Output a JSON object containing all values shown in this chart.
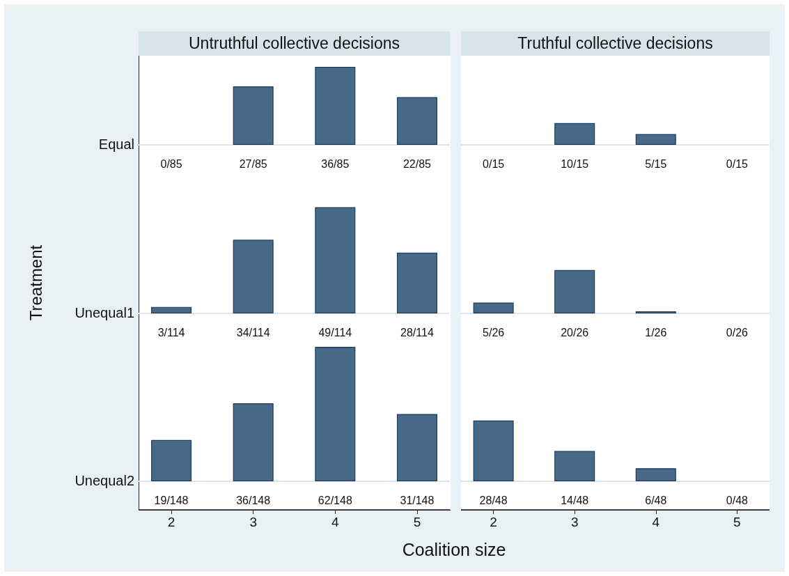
{
  "chart_data": [
    {
      "type": "bar",
      "title": "Untruthful collective decisions",
      "annotations": [
        "Equal"
      ],
      "x": [
        2,
        3,
        4,
        5
      ],
      "xlim": [
        1.6,
        5.4
      ],
      "values": [
        0,
        27,
        36,
        22
      ],
      "value_labels": [
        "0/85",
        "27/85",
        "36/85",
        "22/85"
      ],
      "color": "#476a8b",
      "tick_labels": false
    },
    {
      "type": "bar",
      "title": "Truthful collective decisions",
      "x": [
        2,
        3,
        4,
        5
      ],
      "xlim": [
        1.6,
        5.4
      ],
      "values": [
        0,
        10,
        5,
        0
      ],
      "value_labels": [
        "0/15",
        "10/15",
        "5/15",
        "0/15"
      ],
      "color": "#476a8b",
      "tick_labels": false
    },
    {
      "type": "bar",
      "ylabel": "Treatment",
      "annotations": [
        "Unequal1"
      ],
      "x": [
        2,
        3,
        4,
        5
      ],
      "xlim": [
        1.6,
        5.4
      ],
      "values": [
        3,
        34,
        49,
        28
      ],
      "value_labels": [
        "3/114",
        "34/114",
        "49/114",
        "28/114"
      ],
      "color": "#476a8b",
      "tick_labels": false
    },
    {
      "type": "bar",
      "x": [
        2,
        3,
        4,
        5
      ],
      "xlim": [
        1.6,
        5.4
      ],
      "values": [
        5,
        20,
        1,
        0
      ],
      "value_labels": [
        "5/26",
        "20/26",
        "1/26",
        "0/26"
      ],
      "color": "#476a8b",
      "tick_labels": false
    },
    {
      "type": "bar",
      "xlabel": "Coalition size",
      "annotations": [
        "Unequal2"
      ],
      "x": [
        2,
        3,
        4,
        5
      ],
      "xlim": [
        1.6,
        5.4
      ],
      "xticks": [
        2,
        3,
        4,
        5
      ],
      "values": [
        19,
        36,
        62,
        31
      ],
      "value_labels": [
        "19/148",
        "36/148",
        "62/148",
        "31/148"
      ],
      "color": "#476a8b",
      "tick_labels": "x"
    },
    {
      "type": "bar",
      "x": [
        2,
        3,
        4,
        5
      ],
      "xlim": [
        1.6,
        5.4
      ],
      "xticks": [
        2,
        3,
        4,
        5
      ],
      "values": [
        28,
        14,
        6,
        0
      ],
      "value_labels": [
        "28/48",
        "14/48",
        "6/48",
        "0/48"
      ],
      "color": "#476a8b",
      "tick_labels": "x"
    }
  ]
}
